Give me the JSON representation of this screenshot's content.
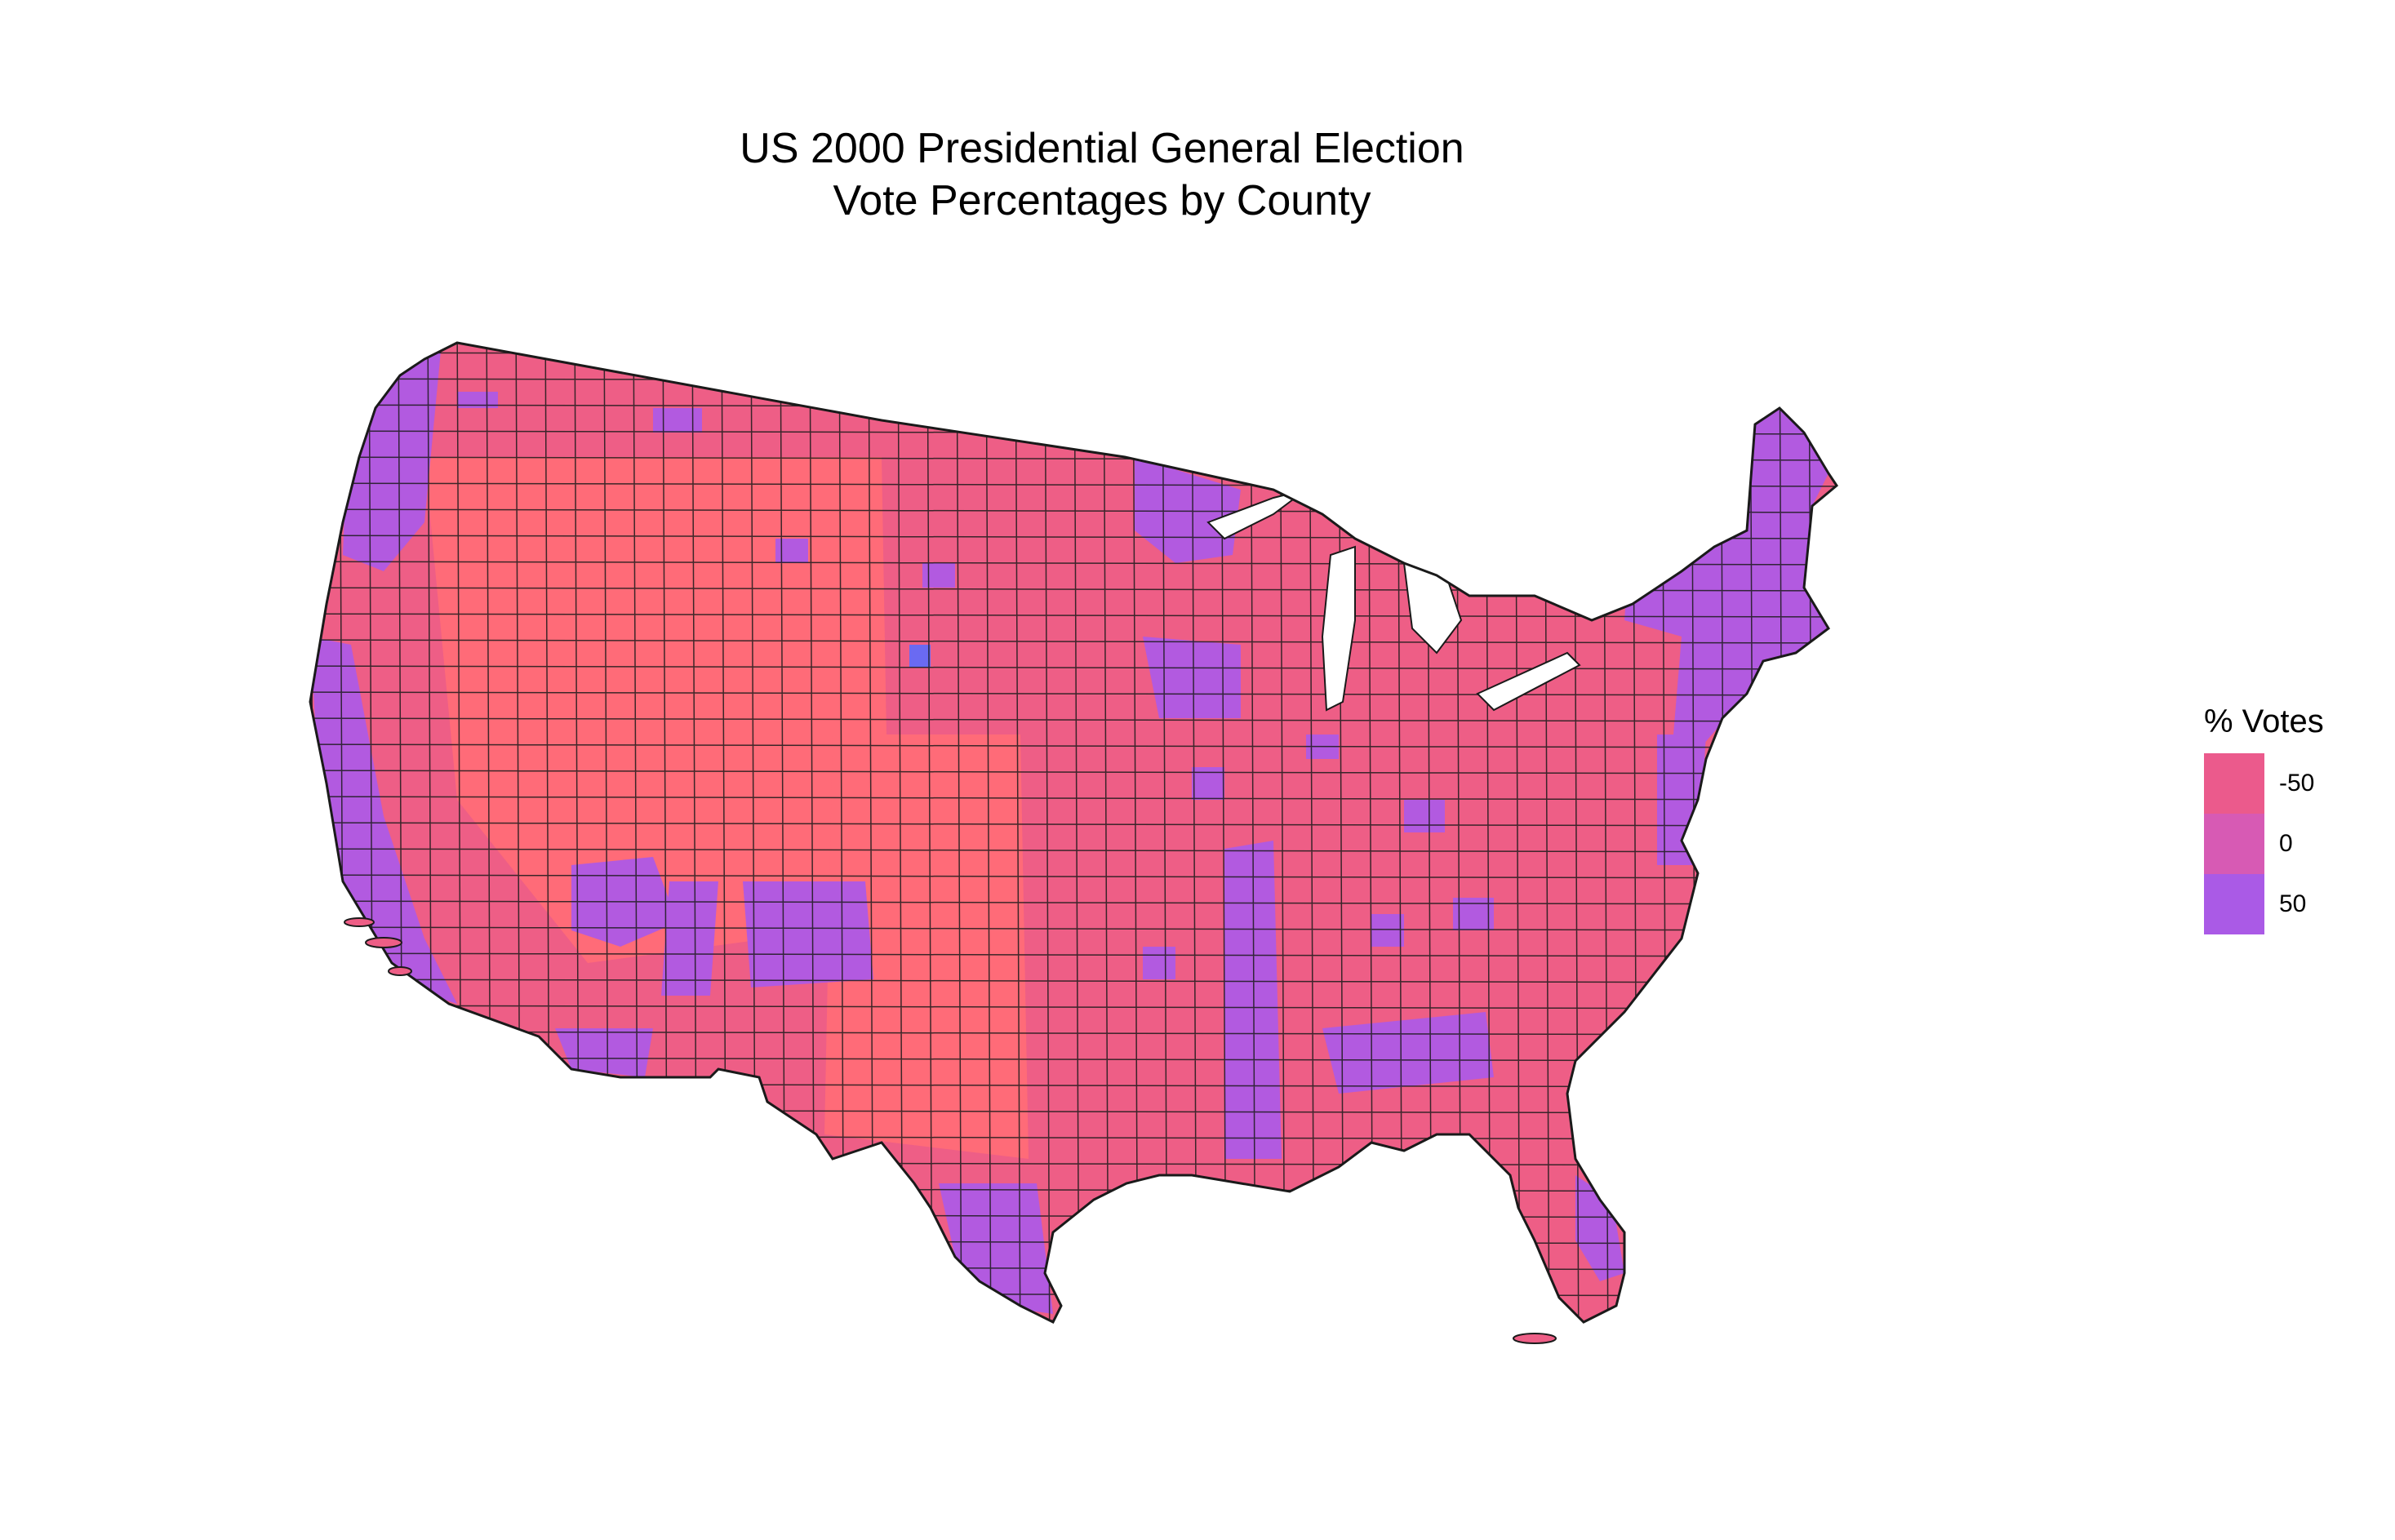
{
  "title": {
    "line1": "US 2000 Presidential General Election",
    "line2": "Vote Percentages by County"
  },
  "legend": {
    "title": "% Votes",
    "items": [
      {
        "label": "-50",
        "value": -50,
        "color": "#EB5A8C"
      },
      {
        "label": "0",
        "value": 0,
        "color": "#D75AB4"
      },
      {
        "label": "50",
        "value": 50,
        "color": "#AA5AE6"
      }
    ]
  },
  "colors": {
    "strong_republican": "#FF6B78",
    "republican": "#EE5E86",
    "democrat": "#B25AE0",
    "strong_democrat": "#6A6AF2",
    "border": "#1a1a1a",
    "background": "#FFFFFF"
  }
}
